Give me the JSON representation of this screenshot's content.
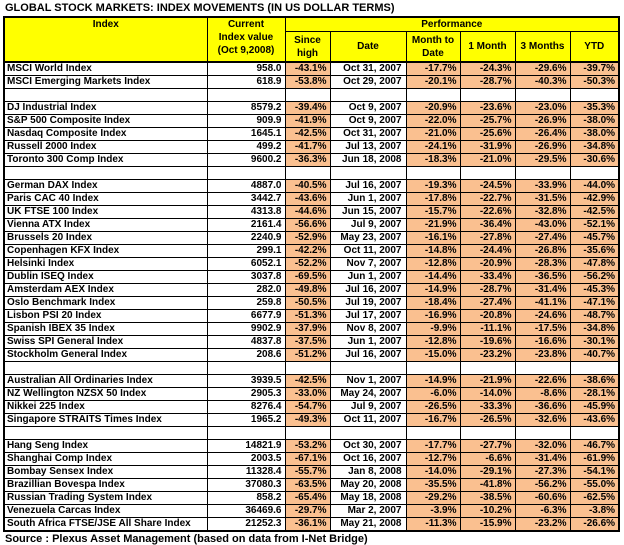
{
  "title": "GLOBAL STOCK MARKETS: INDEX MOVEMENTS (IN US DOLLAR TERMS)",
  "source": "Source : Plexus Asset Management (based on data from I-Net Bridge)",
  "colors": {
    "header_bg": "#FFFF00",
    "performance_cell_bg": "#FAC090",
    "border": "#000000",
    "text": "#000000"
  },
  "chart_data": {
    "type": "table",
    "title": "GLOBAL STOCK MARKETS: INDEX MOVEMENTS (IN US DOLLAR TERMS)",
    "columns": [
      "Index",
      "Current Index value (Oct 9,2008)",
      "Since high",
      "Date",
      "Month to Date",
      "1 Month",
      "3 Months",
      "YTD"
    ],
    "header": {
      "index_label": "Index",
      "current_lines": [
        "Current",
        "Index value",
        "(Oct 9,2008)"
      ],
      "performance_label": "Performance",
      "sub_labels": [
        "Since high",
        "Date",
        "Month to Date",
        "1 Month",
        "3 Months",
        "YTD"
      ]
    },
    "groups": [
      {
        "rows": [
          [
            "MSCI World Index",
            "958.0",
            "-43.1%",
            "Oct 31, 2007",
            "-17.7%",
            "-24.3%",
            "-29.6%",
            "-39.7%"
          ],
          [
            "MSCI Emerging Markets Index",
            "618.9",
            "-53.8%",
            "Oct 29, 2007",
            "-20.1%",
            "-28.7%",
            "-40.3%",
            "-50.3%"
          ]
        ]
      },
      {
        "rows": [
          [
            "DJ Industrial Index",
            "8579.2",
            "-39.4%",
            "Oct 9, 2007",
            "-20.9%",
            "-23.6%",
            "-23.0%",
            "-35.3%"
          ],
          [
            "S&P 500 Composite Index",
            "909.9",
            "-41.9%",
            "Oct 9, 2007",
            "-22.0%",
            "-25.7%",
            "-26.9%",
            "-38.0%"
          ],
          [
            "Nasdaq Composite Index",
            "1645.1",
            "-42.5%",
            "Oct 31, 2007",
            "-21.0%",
            "-25.6%",
            "-26.4%",
            "-38.0%"
          ],
          [
            "Russell 2000 Index",
            "499.2",
            "-41.7%",
            "Jul 13, 2007",
            "-24.1%",
            "-31.9%",
            "-26.9%",
            "-34.8%"
          ],
          [
            "Toronto 300 Comp Index",
            "9600.2",
            "-36.3%",
            "Jun 18, 2008",
            "-18.3%",
            "-21.0%",
            "-29.5%",
            "-30.6%"
          ]
        ]
      },
      {
        "rows": [
          [
            "German DAX Index",
            "4887.0",
            "-40.5%",
            "Jul 16, 2007",
            "-19.3%",
            "-24.5%",
            "-33.9%",
            "-44.0%"
          ],
          [
            "Paris CAC 40 Index",
            "3442.7",
            "-43.6%",
            "Jun 1, 2007",
            "-17.8%",
            "-22.7%",
            "-31.5%",
            "-42.9%"
          ],
          [
            "UK FTSE 100 Index",
            "4313.8",
            "-44.6%",
            "Jun 15, 2007",
            "-15.7%",
            "-22.6%",
            "-32.8%",
            "-42.5%"
          ],
          [
            "Vienna ATX Index",
            "2161.4",
            "-56.6%",
            "Jul 9, 2007",
            "-21.9%",
            "-36.4%",
            "-43.0%",
            "-52.1%"
          ],
          [
            "Brussels 20 Index",
            "2240.9",
            "-52.9%",
            "May 23, 2007",
            "-16.1%",
            "-27.8%",
            "-27.4%",
            "-45.7%"
          ],
          [
            "Copenhagen KFX Index",
            "299.1",
            "-42.2%",
            "Oct 11, 2007",
            "-14.8%",
            "-24.4%",
            "-26.8%",
            "-35.6%"
          ],
          [
            "Helsinki Index",
            "6052.1",
            "-52.2%",
            "Nov 7, 2007",
            "-12.8%",
            "-20.9%",
            "-28.3%",
            "-47.8%"
          ],
          [
            "Dublin ISEQ Index",
            "3037.8",
            "-69.5%",
            "Jun 1, 2007",
            "-14.4%",
            "-33.4%",
            "-36.5%",
            "-56.2%"
          ],
          [
            "Amsterdam AEX Index",
            "282.0",
            "-49.8%",
            "Jul 16, 2007",
            "-14.9%",
            "-28.7%",
            "-31.4%",
            "-45.3%"
          ],
          [
            "Oslo Benchmark Index",
            "259.8",
            "-50.5%",
            "Jul 19, 2007",
            "-18.4%",
            "-27.4%",
            "-41.1%",
            "-47.1%"
          ],
          [
            "Lisbon PSI 20 Index",
            "6677.9",
            "-51.3%",
            "Jul 17, 2007",
            "-16.9%",
            "-20.8%",
            "-24.6%",
            "-48.7%"
          ],
          [
            "Spanish IBEX 35 Index",
            "9902.9",
            "-37.9%",
            "Nov 8, 2007",
            "-9.9%",
            "-11.1%",
            "-17.5%",
            "-34.8%"
          ],
          [
            "Swiss SPI General Index",
            "4837.8",
            "-37.5%",
            "Jun 1, 2007",
            "-12.8%",
            "-19.6%",
            "-16.6%",
            "-30.1%"
          ],
          [
            "Stockholm General Index",
            "208.6",
            "-51.2%",
            "Jul 16, 2007",
            "-15.0%",
            "-23.2%",
            "-23.8%",
            "-40.7%"
          ]
        ]
      },
      {
        "rows": [
          [
            "Australian All Ordinaries Index",
            "3939.5",
            "-42.5%",
            "Nov 1, 2007",
            "-14.9%",
            "-21.9%",
            "-22.6%",
            "-38.6%"
          ],
          [
            "NZ Wellington NZSX 50 Index",
            "2905.3",
            "-33.0%",
            "May 24, 2007",
            "-6.0%",
            "-14.0%",
            "-8.6%",
            "-28.1%"
          ],
          [
            "Nikkei 225 Index",
            "8276.4",
            "-54.7%",
            "Jul 9, 2007",
            "-26.5%",
            "-33.3%",
            "-36.6%",
            "-45.9%"
          ],
          [
            "Singapore STRAITS Times Index",
            "1965.2",
            "-49.3%",
            "Oct 11, 2007",
            "-16.7%",
            "-26.5%",
            "-32.6%",
            "-43.6%"
          ]
        ]
      },
      {
        "rows": [
          [
            "Hang Seng Index",
            "14821.9",
            "-53.2%",
            "Oct 30, 2007",
            "-17.7%",
            "-27.7%",
            "-32.0%",
            "-46.7%"
          ],
          [
            "Shanghai Comp Index",
            "2003.5",
            "-67.1%",
            "Oct 16, 2007",
            "-12.7%",
            "-6.6%",
            "-31.4%",
            "-61.9%"
          ],
          [
            "Bombay Sensex Index",
            "11328.4",
            "-55.7%",
            "Jan 8, 2008",
            "-14.0%",
            "-29.1%",
            "-27.3%",
            "-54.1%"
          ],
          [
            "Brazillian Bovespa Index",
            "37080.3",
            "-63.5%",
            "May 20, 2008",
            "-35.5%",
            "-41.8%",
            "-56.2%",
            "-55.0%"
          ],
          [
            "Russian Trading System Index",
            "858.2",
            "-65.4%",
            "May 18, 2008",
            "-29.2%",
            "-38.5%",
            "-60.6%",
            "-62.5%"
          ],
          [
            "Venezuela Carcas Index",
            "36469.6",
            "-29.7%",
            "Mar 2, 2007",
            "-3.9%",
            "-10.2%",
            "-6.3%",
            "-3.8%"
          ],
          [
            "South Africa FTSE/JSE All Share Index",
            "21252.3",
            "-36.1%",
            "May 21, 2008",
            "-11.3%",
            "-15.9%",
            "-23.2%",
            "-26.6%"
          ]
        ]
      }
    ]
  }
}
